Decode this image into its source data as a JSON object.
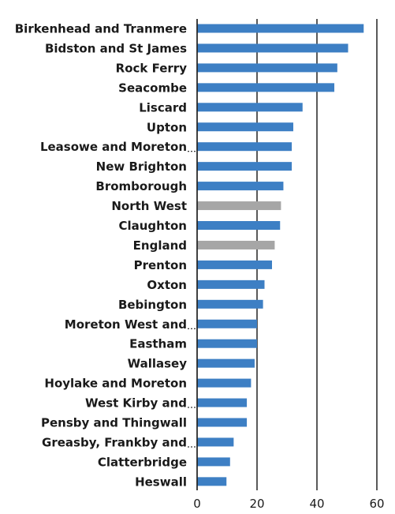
{
  "chart_data": {
    "type": "bar",
    "orientation": "horizontal",
    "title": "",
    "xlabel": "",
    "ylabel": "",
    "xlim": [
      0,
      60
    ],
    "x_ticks": [
      "0",
      "20",
      "40",
      "60"
    ],
    "grid": "vertical lines at 20, 40, 60",
    "legend": "none",
    "colors": {
      "default": "#3d7fc4",
      "highlight": "#a6a6a6",
      "axis": "#000000"
    },
    "categories": [
      "Birkenhead and Tranmere",
      "Bidston and St James",
      "Rock Ferry",
      "Seacombe",
      "Liscard",
      "Upton",
      "Leasowe and Moreton",
      "New Brighton",
      "Bromborough",
      "North West",
      "Claughton",
      "England",
      "Prenton",
      "Oxton",
      "Bebington",
      "Moreton West and",
      "Eastham",
      "Wallasey",
      "Hoylake and Moreton",
      "West Kirby and",
      "Pensby and Thingwall",
      "Greasby, Frankby and",
      "Clatterbridge",
      "Heswall"
    ],
    "values": [
      55.6,
      50.4,
      46.8,
      45.8,
      35.2,
      32.1,
      31.6,
      31.6,
      28.8,
      28.0,
      27.7,
      25.9,
      25.0,
      22.5,
      22.0,
      20.0,
      20.0,
      19.2,
      18.0,
      16.6,
      16.6,
      12.2,
      11.0,
      9.8
    ],
    "highlighted": [
      "North West",
      "England"
    ],
    "truncated": [
      "Leasowe and Moreton",
      "Moreton West and",
      "West Kirby and",
      "Greasby, Frankby and"
    ]
  }
}
